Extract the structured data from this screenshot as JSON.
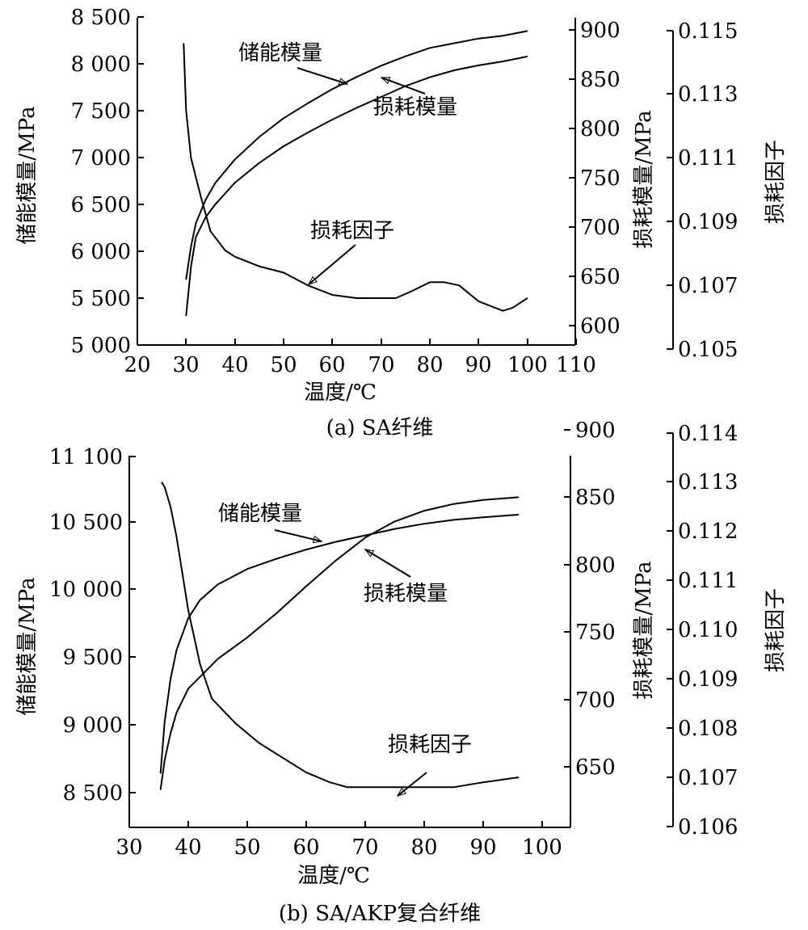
{
  "chart_data": [
    {
      "type": "line",
      "caption": "(a) SA纤维",
      "xlabel": "温度/℃",
      "ylabel_left": "储能模量/MPa",
      "ylabel_right1": "损耗模量/MPa",
      "ylabel_right2": "损耗因子",
      "xlim": [
        20,
        110
      ],
      "xticks": [
        "20",
        "30",
        "40",
        "50",
        "60",
        "70",
        "80",
        "90",
        "100",
        "110"
      ],
      "ylim_left": [
        5000,
        8500
      ],
      "yticks_left": [
        "5 000",
        "5 500",
        "6 000",
        "6 500",
        "7 000",
        "7 500",
        "8 000",
        "8 500"
      ],
      "ylim_right1": [
        570,
        900
      ],
      "yticks_right1": [
        "600",
        "650",
        "700",
        "750",
        "800",
        "850",
        "900"
      ],
      "ylim_right2": [
        0.105,
        0.115
      ],
      "yticks_right2": [
        "0.105",
        "0.107",
        "0.109",
        "0.111",
        "0.113",
        "0.115"
      ],
      "series": [
        {
          "name": "储能模量",
          "axis": "left",
          "x": [
            30,
            31,
            32,
            34,
            36,
            40,
            45,
            50,
            55,
            60,
            65,
            70,
            75,
            80,
            85,
            90,
            95,
            100
          ],
          "values": [
            5700,
            6050,
            6300,
            6550,
            6730,
            6980,
            7220,
            7420,
            7580,
            7730,
            7860,
            7980,
            8080,
            8170,
            8220,
            8270,
            8300,
            8350
          ]
        },
        {
          "name": "损耗模量",
          "axis": "right1",
          "x": [
            30,
            31,
            32,
            34,
            36,
            40,
            45,
            50,
            55,
            60,
            65,
            70,
            75,
            80,
            85,
            90,
            95,
            100
          ],
          "values": [
            610,
            660,
            690,
            710,
            723,
            745,
            765,
            782,
            796,
            809,
            821,
            832,
            843,
            852,
            859,
            864,
            868,
            873
          ]
        },
        {
          "name": "损耗因子",
          "axis": "right2",
          "x": [
            29.5,
            30,
            31,
            33,
            35,
            38,
            40,
            45,
            50,
            55,
            60,
            65,
            70,
            73,
            76,
            80,
            83,
            86,
            90,
            95,
            97,
            100
          ],
          "values": [
            0.1146,
            0.1125,
            0.111,
            0.1098,
            0.1087,
            0.1081,
            0.1079,
            0.1076,
            0.1074,
            0.107,
            0.1067,
            0.1066,
            0.1066,
            0.1066,
            0.1068,
            0.1071,
            0.1071,
            0.107,
            0.1065,
            0.1062,
            0.1063,
            0.1066
          ]
        }
      ],
      "annotations": [
        "储能模量",
        "损耗模量",
        "损耗因子"
      ]
    },
    {
      "type": "line",
      "caption": "(b) SA/AKP复合纤维",
      "xlabel": "温度/℃",
      "ylabel_left": "储能模量/MPa",
      "ylabel_right1": "损耗模量/MPa",
      "ylabel_right2": "损耗因子",
      "xlim": [
        30,
        105
      ],
      "xticks": [
        "30",
        "40",
        "50",
        "60",
        "70",
        "80",
        "90",
        "100"
      ],
      "ylim_left": [
        8250,
        11100
      ],
      "yticks_left": [
        "8 500",
        "9 000",
        "9 500",
        "10 000",
        "10 500",
        "11 100"
      ],
      "ylim_right1": [
        605,
        900
      ],
      "yticks_right1": [
        "650",
        "700",
        "750",
        "800",
        "850",
        "900"
      ],
      "ylim_right2": [
        0.106,
        0.114
      ],
      "yticks_right2": [
        "0.106",
        "0.107",
        "0.108",
        "0.109",
        "0.110",
        "0.111",
        "0.112",
        "0.113",
        "0.114"
      ],
      "series": [
        {
          "name": "储能模量",
          "axis": "left",
          "x": [
            35.3,
            36,
            37,
            38,
            40,
            42,
            45,
            50,
            55,
            60,
            65,
            70,
            75,
            80,
            85,
            90,
            96
          ],
          "values": [
            8650,
            9050,
            9380,
            9600,
            9850,
            9990,
            10110,
            10230,
            10310,
            10380,
            10440,
            10490,
            10540,
            10580,
            10610,
            10630,
            10650
          ]
        },
        {
          "name": "损耗模量",
          "axis": "right1",
          "x": [
            35.3,
            36,
            37,
            38,
            40,
            45,
            50,
            55,
            60,
            65,
            70,
            75,
            80,
            85,
            90,
            96
          ],
          "values": [
            633,
            655,
            675,
            690,
            708,
            730,
            746,
            764,
            784,
            803,
            820,
            832,
            840,
            845,
            848,
            850
          ]
        },
        {
          "name": "损耗因子",
          "axis": "right2",
          "x": [
            35.5,
            36,
            37,
            38,
            40,
            42,
            44,
            48,
            52,
            56,
            60,
            64,
            67,
            70,
            72,
            75,
            80,
            85,
            90,
            96
          ],
          "values": [
            0.113,
            0.1129,
            0.1125,
            0.1119,
            0.1104,
            0.1093,
            0.1086,
            0.1081,
            0.1077,
            0.1074,
            0.1071,
            0.1069,
            0.1068,
            0.1068,
            0.1068,
            0.1068,
            0.1068,
            0.1068,
            0.1069,
            0.107
          ]
        }
      ],
      "annotations": [
        "储能模量",
        "损耗模量",
        "损耗因子"
      ]
    }
  ]
}
